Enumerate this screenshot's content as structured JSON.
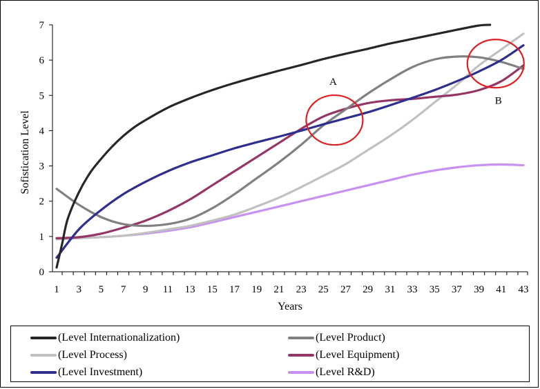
{
  "chart_data": {
    "type": "line",
    "xlabel": "Years",
    "ylabel": "Sofistication Level",
    "xlim": [
      1,
      44
    ],
    "ylim": [
      0,
      7
    ],
    "x_ticks": [
      1,
      3,
      5,
      7,
      9,
      11,
      13,
      15,
      17,
      19,
      21,
      23,
      25,
      27,
      29,
      31,
      33,
      35,
      37,
      39,
      41,
      43
    ],
    "y_ticks": [
      0,
      1,
      2,
      3,
      4,
      5,
      6,
      7
    ],
    "grid": false,
    "legend_position": "bottom",
    "series": [
      {
        "name": "(Level Internationalization)",
        "color": "#262626",
        "x": [
          1,
          1.5,
          2,
          3,
          4,
          5,
          6,
          7,
          8,
          9,
          11,
          13,
          15,
          17,
          19,
          21,
          23,
          25,
          27,
          29,
          31,
          33,
          35,
          37,
          39,
          40
        ],
        "y": [
          0.12,
          0.8,
          1.5,
          2.25,
          2.8,
          3.2,
          3.55,
          3.85,
          4.1,
          4.3,
          4.65,
          4.92,
          5.15,
          5.35,
          5.53,
          5.7,
          5.86,
          6.03,
          6.18,
          6.32,
          6.47,
          6.6,
          6.73,
          6.86,
          6.98,
          7.0
        ]
      },
      {
        "name": "(Level Product)",
        "color": "#808080",
        "x": [
          1,
          3,
          5,
          7,
          9,
          11,
          13,
          15,
          17,
          19,
          21,
          23,
          25,
          27,
          29,
          31,
          33,
          35,
          37,
          39,
          41,
          43
        ],
        "y": [
          2.35,
          1.9,
          1.55,
          1.35,
          1.3,
          1.35,
          1.5,
          1.8,
          2.2,
          2.65,
          3.1,
          3.6,
          4.15,
          4.6,
          5.05,
          5.45,
          5.8,
          6.02,
          6.1,
          6.08,
          5.95,
          5.75
        ]
      },
      {
        "name": "(Level Process)",
        "color": "#c0c0c0",
        "x": [
          1,
          3,
          5,
          7,
          9,
          11,
          13,
          15,
          17,
          19,
          21,
          23,
          25,
          27,
          29,
          31,
          33,
          35,
          37,
          39,
          41,
          43
        ],
        "y": [
          0.92,
          0.95,
          0.98,
          1.02,
          1.1,
          1.2,
          1.3,
          1.45,
          1.62,
          1.85,
          2.1,
          2.4,
          2.72,
          3.05,
          3.45,
          3.85,
          4.3,
          4.8,
          5.3,
          5.85,
          6.3,
          6.75
        ]
      },
      {
        "name": "(Level Equipment)",
        "color": "#943566",
        "x": [
          1,
          3,
          5,
          7,
          9,
          11,
          13,
          15,
          17,
          19,
          21,
          23,
          25,
          27,
          29,
          31,
          33,
          35,
          37,
          39,
          41,
          43
        ],
        "y": [
          0.95,
          0.98,
          1.08,
          1.25,
          1.45,
          1.72,
          2.05,
          2.45,
          2.85,
          3.25,
          3.65,
          4.05,
          4.4,
          4.62,
          4.78,
          4.86,
          4.9,
          4.96,
          5.02,
          5.15,
          5.4,
          5.85
        ]
      },
      {
        "name": "(Level Investment)",
        "color": "#2e2e8f",
        "x": [
          1,
          3,
          5,
          7,
          9,
          11,
          13,
          15,
          17,
          19,
          21,
          23,
          25,
          27,
          29,
          31,
          33,
          35,
          37,
          39,
          41,
          43
        ],
        "y": [
          0.4,
          1.2,
          1.75,
          2.2,
          2.55,
          2.85,
          3.1,
          3.3,
          3.5,
          3.67,
          3.83,
          4.0,
          4.18,
          4.35,
          4.52,
          4.72,
          4.93,
          5.15,
          5.4,
          5.68,
          6.0,
          6.42
        ]
      },
      {
        "name": "(Level R&D)",
        "color": "#c890f0",
        "x": [
          1,
          3,
          5,
          7,
          9,
          11,
          13,
          15,
          17,
          19,
          21,
          23,
          25,
          27,
          29,
          31,
          33,
          35,
          37,
          39,
          41,
          43
        ],
        "y": [
          0.95,
          0.96,
          0.98,
          1.02,
          1.08,
          1.16,
          1.26,
          1.4,
          1.55,
          1.7,
          1.85,
          2.0,
          2.15,
          2.3,
          2.45,
          2.6,
          2.75,
          2.87,
          2.96,
          3.02,
          3.04,
          3.02
        ]
      }
    ],
    "annotations": [
      {
        "label": "A",
        "x": 26,
        "y": 4.3,
        "color": "#e02020"
      },
      {
        "label": "B",
        "x": 40.5,
        "y": 5.9,
        "color": "#e02020"
      }
    ]
  }
}
